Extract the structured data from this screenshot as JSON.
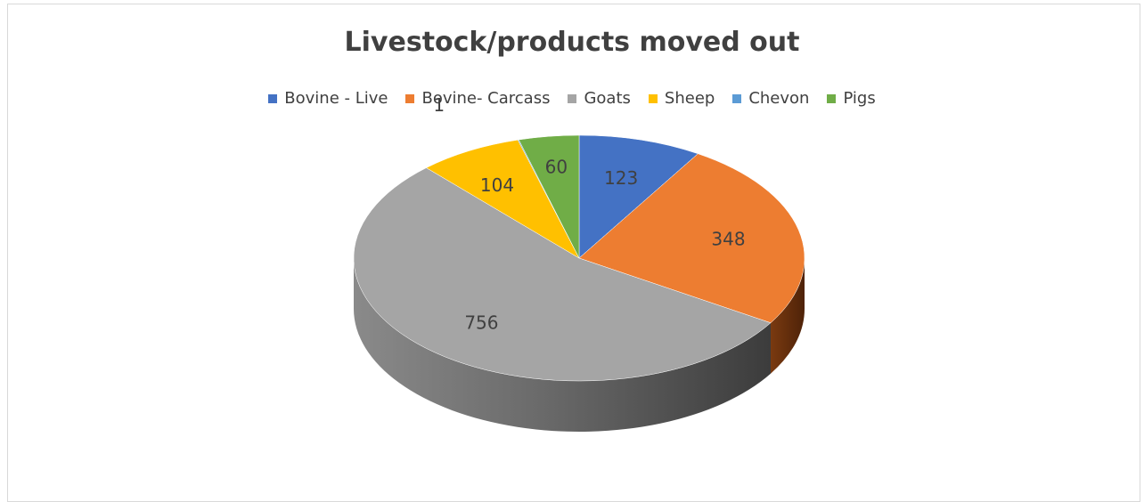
{
  "chart_data": {
    "type": "pie",
    "title": "Livestock/products moved out",
    "legend_position": "top",
    "categories": [
      "Bovine - Live",
      "Bovine- Carcass",
      "Goats",
      "Sheep",
      "Chevon",
      "Pigs"
    ],
    "values": [
      123,
      348,
      756,
      104,
      1,
      60
    ],
    "data_labels": [
      "123",
      "348",
      "756",
      "104",
      "1",
      "60"
    ],
    "colors": [
      "#4472C4",
      "#ED7D31",
      "#A5A5A5",
      "#FFC000",
      "#5B9BD5",
      "#70AD47"
    ],
    "style": "3d"
  }
}
